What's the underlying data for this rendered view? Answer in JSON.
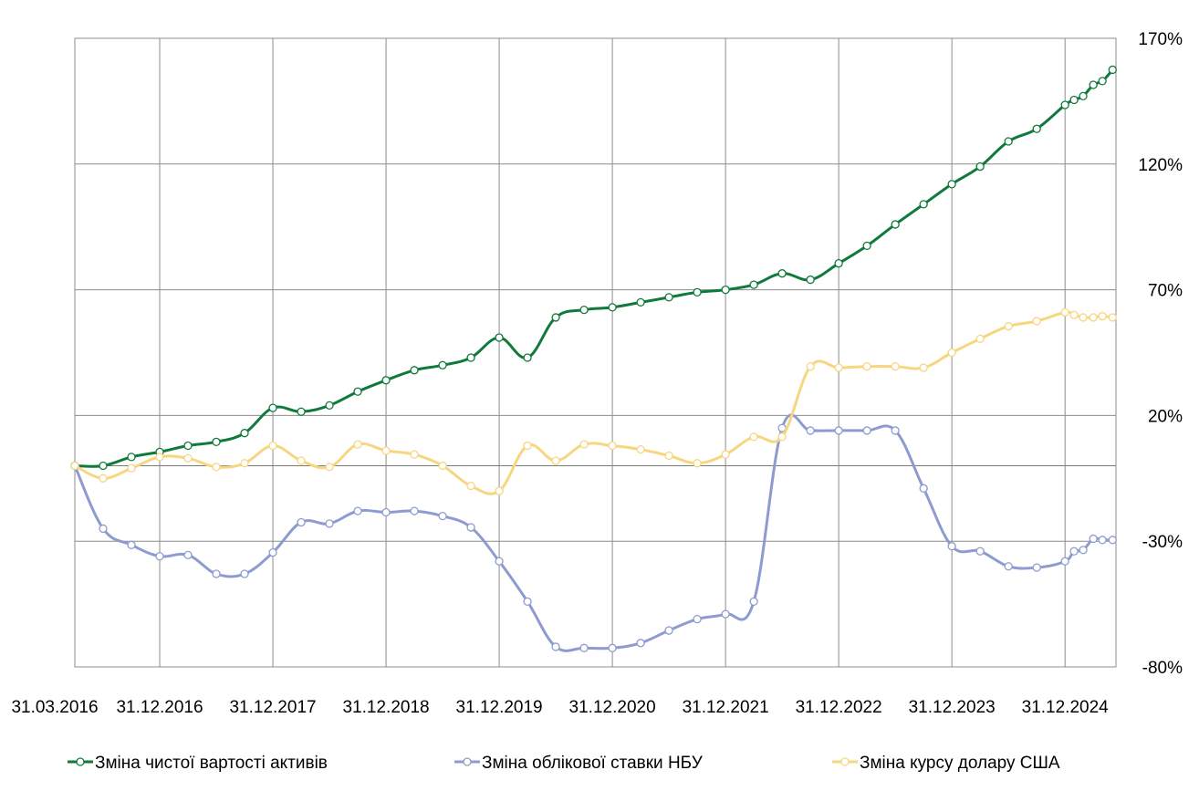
{
  "chart_data": {
    "type": "line",
    "title": "",
    "xlabel": "",
    "ylabel": "",
    "ylim": [
      -80,
      170
    ],
    "y_ticks": [
      "170%",
      "120%",
      "70%",
      "20%",
      "-30%",
      "-80%"
    ],
    "y_tick_values": [
      170,
      120,
      70,
      20,
      -30,
      -80
    ],
    "y_axis_side": "right",
    "x_ticks": [
      "31.03.2016",
      "31.12.2016",
      "31.12.2017",
      "31.12.2018",
      "31.12.2019",
      "31.12.2020",
      "31.12.2021",
      "31.12.2022",
      "31.12.2023",
      "31.12.2024"
    ],
    "x_tick_values": [
      2016.0,
      2016.75,
      2017.75,
      2018.75,
      2019.75,
      2020.75,
      2021.75,
      2022.75,
      2023.75,
      2024.75
    ],
    "xlim": [
      2016.0,
      2025.2
    ],
    "grid": true,
    "legend_position": "bottom",
    "series": [
      {
        "name": "Зміна чистої вартості активів",
        "color": "#0f7a3c",
        "points": [
          [
            2016.0,
            0
          ],
          [
            2016.25,
            0
          ],
          [
            2016.5,
            3.5
          ],
          [
            2016.75,
            5.5
          ],
          [
            2017.0,
            8
          ],
          [
            2017.25,
            9.5
          ],
          [
            2017.5,
            13
          ],
          [
            2017.75,
            23
          ],
          [
            2018.0,
            21.5
          ],
          [
            2018.25,
            24
          ],
          [
            2018.5,
            29.5
          ],
          [
            2018.75,
            34
          ],
          [
            2019.0,
            38
          ],
          [
            2019.25,
            40
          ],
          [
            2019.5,
            43
          ],
          [
            2019.75,
            51
          ],
          [
            2020.0,
            43
          ],
          [
            2020.25,
            59
          ],
          [
            2020.5,
            62
          ],
          [
            2020.75,
            63
          ],
          [
            2021.0,
            65
          ],
          [
            2021.25,
            67
          ],
          [
            2021.5,
            69
          ],
          [
            2021.75,
            70
          ],
          [
            2022.0,
            72
          ],
          [
            2022.25,
            76.5
          ],
          [
            2022.5,
            74
          ],
          [
            2022.75,
            80.5
          ],
          [
            2023.0,
            87.5
          ],
          [
            2023.25,
            96
          ],
          [
            2023.5,
            104
          ],
          [
            2023.75,
            112
          ],
          [
            2024.0,
            119
          ],
          [
            2024.25,
            129
          ],
          [
            2024.5,
            134
          ],
          [
            2024.75,
            143.5
          ],
          [
            2024.83,
            145.5
          ],
          [
            2024.91,
            147
          ],
          [
            2025.0,
            151.5
          ],
          [
            2025.08,
            153
          ],
          [
            2025.17,
            157.5
          ]
        ]
      },
      {
        "name": "Зміна облікової ставки НБУ",
        "color": "#8e9bd0",
        "points": [
          [
            2016.0,
            0
          ],
          [
            2016.25,
            -25
          ],
          [
            2016.5,
            -31.5
          ],
          [
            2016.75,
            -36
          ],
          [
            2017.0,
            -35.5
          ],
          [
            2017.25,
            -43
          ],
          [
            2017.5,
            -43
          ],
          [
            2017.75,
            -34.5
          ],
          [
            2018.0,
            -22.5
          ],
          [
            2018.25,
            -23
          ],
          [
            2018.5,
            -18
          ],
          [
            2018.75,
            -18.5
          ],
          [
            2019.0,
            -18
          ],
          [
            2019.25,
            -20
          ],
          [
            2019.5,
            -24.5
          ],
          [
            2019.75,
            -38
          ],
          [
            2020.0,
            -54
          ],
          [
            2020.25,
            -72
          ],
          [
            2020.5,
            -72.5
          ],
          [
            2020.75,
            -72.5
          ],
          [
            2021.0,
            -70.5
          ],
          [
            2021.25,
            -65.5
          ],
          [
            2021.5,
            -61
          ],
          [
            2021.75,
            -59
          ],
          [
            2022.0,
            -54
          ],
          [
            2022.25,
            15
          ],
          [
            2022.5,
            14
          ],
          [
            2022.75,
            14
          ],
          [
            2023.0,
            14
          ],
          [
            2023.25,
            14
          ],
          [
            2023.5,
            -9
          ],
          [
            2023.75,
            -32
          ],
          [
            2024.0,
            -34
          ],
          [
            2024.25,
            -40
          ],
          [
            2024.5,
            -40.5
          ],
          [
            2024.75,
            -38
          ],
          [
            2024.83,
            -34
          ],
          [
            2024.91,
            -33.5
          ],
          [
            2025.0,
            -29
          ],
          [
            2025.08,
            -29.5
          ],
          [
            2025.17,
            -29.5
          ]
        ]
      },
      {
        "name": "Зміна курсу долару США",
        "color": "#f7d680",
        "points": [
          [
            2016.0,
            0
          ],
          [
            2016.25,
            -5
          ],
          [
            2016.5,
            -1
          ],
          [
            2016.75,
            3.5
          ],
          [
            2017.0,
            3
          ],
          [
            2017.25,
            -0.5
          ],
          [
            2017.5,
            1
          ],
          [
            2017.75,
            8
          ],
          [
            2018.0,
            2
          ],
          [
            2018.25,
            -0.5
          ],
          [
            2018.5,
            8.5
          ],
          [
            2018.75,
            6
          ],
          [
            2019.0,
            4.5
          ],
          [
            2019.25,
            0
          ],
          [
            2019.5,
            -8
          ],
          [
            2019.75,
            -10
          ],
          [
            2020.0,
            8
          ],
          [
            2020.25,
            2
          ],
          [
            2020.5,
            8.5
          ],
          [
            2020.75,
            8
          ],
          [
            2021.0,
            6.5
          ],
          [
            2021.25,
            4
          ],
          [
            2021.5,
            1
          ],
          [
            2021.75,
            4.5
          ],
          [
            2022.0,
            11.5
          ],
          [
            2022.25,
            11.5
          ],
          [
            2022.5,
            39.5
          ],
          [
            2022.75,
            39
          ],
          [
            2023.0,
            39.5
          ],
          [
            2023.25,
            39.5
          ],
          [
            2023.5,
            39
          ],
          [
            2023.75,
            45
          ],
          [
            2024.0,
            50.5
          ],
          [
            2024.25,
            55.5
          ],
          [
            2024.5,
            57.5
          ],
          [
            2024.75,
            61
          ],
          [
            2024.83,
            60
          ],
          [
            2024.91,
            59
          ],
          [
            2025.0,
            59
          ],
          [
            2025.08,
            59.5
          ],
          [
            2025.17,
            59
          ]
        ]
      }
    ]
  }
}
